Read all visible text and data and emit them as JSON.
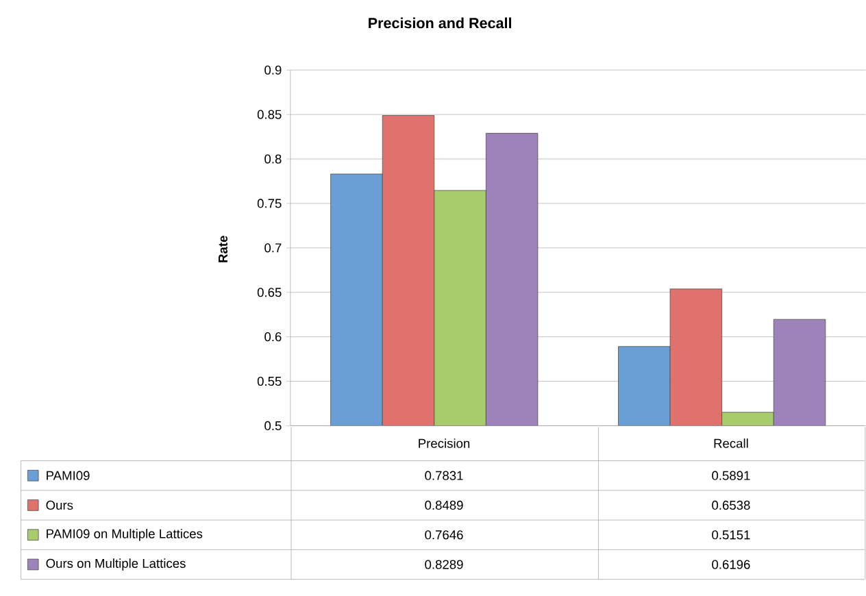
{
  "chart_data": {
    "type": "bar",
    "title": "Precision and Recall",
    "ylabel": "Rate",
    "categories": [
      "Precision",
      "Recall"
    ],
    "series": [
      {
        "name": "PAMI09",
        "color": "#6a9fd6",
        "values": [
          0.7831,
          0.5891
        ]
      },
      {
        "name": "Ours",
        "color": "#e0726e",
        "values": [
          0.8489,
          0.6538
        ]
      },
      {
        "name": "PAMI09 on Multiple Lattices",
        "color": "#a8cc6c",
        "values": [
          0.7646,
          0.5151
        ]
      },
      {
        "name": "Ours on Multiple Lattices",
        "color": "#9e82ba",
        "values": [
          0.8289,
          0.6196
        ]
      }
    ],
    "ylim": [
      0.5,
      0.9
    ],
    "yticks": [
      0.5,
      0.55,
      0.6,
      0.65,
      0.7,
      0.75,
      0.8,
      0.85,
      0.9
    ],
    "grid": "y",
    "legend": "bottom",
    "data_labels": true
  }
}
